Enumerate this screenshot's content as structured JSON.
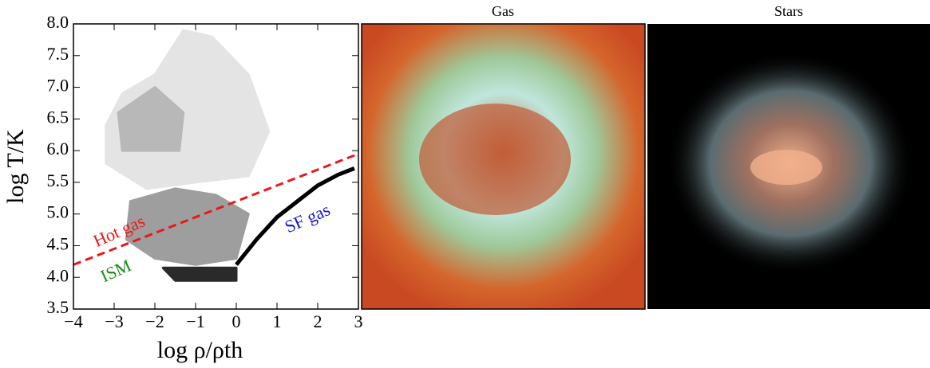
{
  "chart_data": {
    "type": "phase-diagram",
    "xlabel": "log ρ/ρth",
    "ylabel": "log T/K",
    "xlim": [
      -4,
      3
    ],
    "ylim": [
      3.5,
      8.0
    ],
    "xticks": [
      {
        "value": -4,
        "label": "−4"
      },
      {
        "value": -3,
        "label": "−3"
      },
      {
        "value": -2,
        "label": "−2"
      },
      {
        "value": -1,
        "label": "−1"
      },
      0,
      1,
      2,
      3
    ],
    "yticks": [
      3.5,
      {
        "value": 4,
        "label": "4.0"
      },
      4.5,
      {
        "value": 5,
        "label": "5.0"
      },
      5.5,
      {
        "value": 6,
        "label": "6.0"
      },
      6.5,
      {
        "value": 7,
        "label": "7.0"
      },
      7.5,
      {
        "value": 8,
        "label": "8.0"
      }
    ],
    "regions": [
      {
        "color": "#e4e4e4",
        "x": [
          -3.2,
          -2.8,
          -2.0,
          -1.3,
          -0.6,
          0.3,
          0.8,
          0.3,
          -1.0,
          -2.2,
          -3.2
        ],
        "y": [
          6.4,
          6.9,
          7.2,
          7.9,
          7.8,
          7.2,
          6.3,
          5.6,
          5.5,
          5.4,
          5.8
        ]
      },
      {
        "color": "#b8b8b8",
        "x": [
          -2.9,
          -2.0,
          -1.3,
          -1.4,
          -2.8
        ],
        "y": [
          6.6,
          7.0,
          6.6,
          6.0,
          6.0
        ]
      },
      {
        "color": "#9e9e9e",
        "x": [
          -2.6,
          -1.5,
          -0.5,
          0.3,
          0.0,
          -1.0,
          -2.0,
          -2.7
        ],
        "y": [
          5.2,
          5.4,
          5.3,
          5.0,
          4.3,
          4.2,
          4.3,
          4.6
        ]
      },
      {
        "color": "#2a2a2a",
        "x": [
          -1.8,
          0.0,
          0.0,
          -1.5
        ],
        "y": [
          4.15,
          4.15,
          3.95,
          3.95
        ]
      }
    ],
    "lines": [
      {
        "color": "#000000",
        "dash": false,
        "x": [
          0.0,
          0.5,
          1.0,
          1.5,
          2.0,
          2.5,
          2.9
        ],
        "y": [
          4.2,
          4.6,
          4.95,
          5.2,
          5.45,
          5.62,
          5.72
        ]
      },
      {
        "color": "#e8191c",
        "dash": true,
        "x": [
          -4,
          3
        ],
        "y": [
          4.2,
          5.95
        ]
      }
    ],
    "annotations": [
      {
        "text": "Hot gas",
        "color": "#e8191c"
      },
      {
        "text": "ISM",
        "color": "#1a8a1a"
      },
      {
        "text": "SF gas",
        "color": "#1515d0"
      }
    ],
    "panels": [
      {
        "title": "Gas"
      },
      {
        "title": "Stars"
      }
    ]
  }
}
